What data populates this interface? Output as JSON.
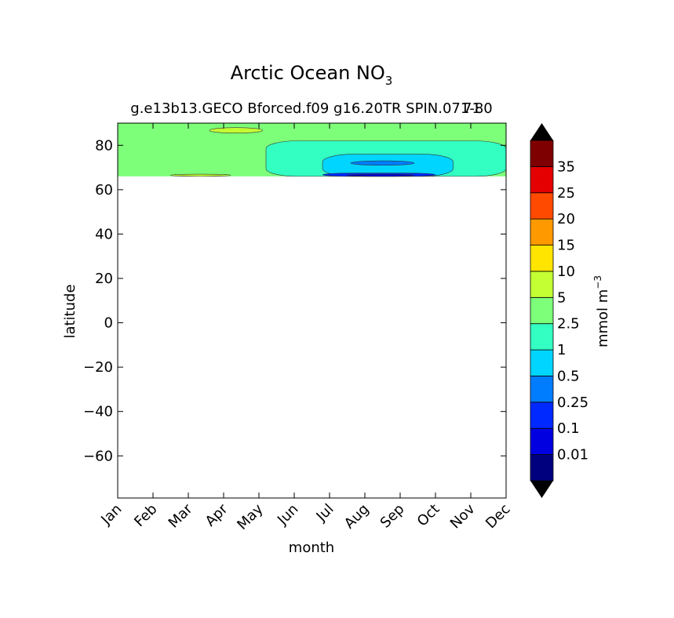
{
  "chart_data": {
    "type": "heatmap",
    "subtype": "filled-contour",
    "title": "Arctic Ocean NO",
    "title_subscript": "3",
    "subtitle": "g.e13b13.GECO Bforced.f09 g16.20TR SPIN.071-80",
    "subtitle_overlap_text": "71",
    "xlabel": "month",
    "ylabel": "latitude",
    "x_categories": [
      "Jan",
      "Feb",
      "Mar",
      "Apr",
      "May",
      "Jun",
      "Jul",
      "Aug",
      "Sep",
      "Oct",
      "Nov",
      "Dec"
    ],
    "ylim": [
      -79,
      90
    ],
    "xlim": [
      1,
      12
    ],
    "yticks": [
      -60,
      -40,
      -20,
      0,
      20,
      40,
      60,
      80
    ],
    "ytick_labels": [
      "−60",
      "−40",
      "−20",
      "0",
      "20",
      "40",
      "60",
      "80"
    ],
    "data_extent_lat": [
      66,
      90
    ],
    "colorbar": {
      "label": "mmol m",
      "label_exponent": "−3",
      "boundaries": [
        0,
        0.01,
        0.1,
        0.25,
        0.5,
        1,
        2.5,
        5,
        10,
        15,
        20,
        25,
        35,
        40
      ],
      "tick_labels": [
        "0.01",
        "0.1",
        "0.25",
        "0.5",
        "1",
        "2.5",
        "5",
        "10",
        "15",
        "20",
        "25",
        "35"
      ],
      "colors": [
        "#00007f",
        "#0000e0",
        "#0029ff",
        "#007dff",
        "#00d5ff",
        "#33ffc3",
        "#7dff7a",
        "#c3ff33",
        "#ffe500",
        "#ff9900",
        "#ff4a00",
        "#e40000",
        "#7f0000"
      ],
      "extend_min_color": "#000000",
      "extend_max_color": "#000000"
    },
    "regions": [
      {
        "level": "2.5-5",
        "months": [
          1,
          12
        ],
        "lat": [
          66,
          90
        ],
        "color": "#7dff7a"
      },
      {
        "level": "5-10",
        "months": [
          3.6,
          5.1
        ],
        "lat": [
          85.5,
          88
        ],
        "color": "#c3ff33"
      },
      {
        "level": "5-10",
        "months": [
          2.5,
          4.2
        ],
        "lat": [
          66,
          67
        ],
        "color": "#c3ff33"
      },
      {
        "level": "1-2.5",
        "months": [
          5.2,
          12
        ],
        "lat": [
          66,
          82
        ],
        "color": "#33ffc3"
      },
      {
        "level": "0.5-1",
        "months": [
          6.8,
          10.5
        ],
        "lat": [
          66,
          76
        ],
        "color": "#00d5ff"
      },
      {
        "level": "0.25-0.5",
        "months": [
          7.6,
          9.4
        ],
        "lat": [
          71,
          73
        ],
        "color": "#007dff"
      },
      {
        "level": "0.1-0.25",
        "months": [
          6.8,
          10
        ],
        "lat": [
          66,
          67.5
        ],
        "color": "#0029ff"
      },
      {
        "level": "0.01-0.1",
        "months": [
          7.5,
          9.4
        ],
        "lat": [
          66,
          67
        ],
        "color": "#0000e0"
      }
    ]
  }
}
